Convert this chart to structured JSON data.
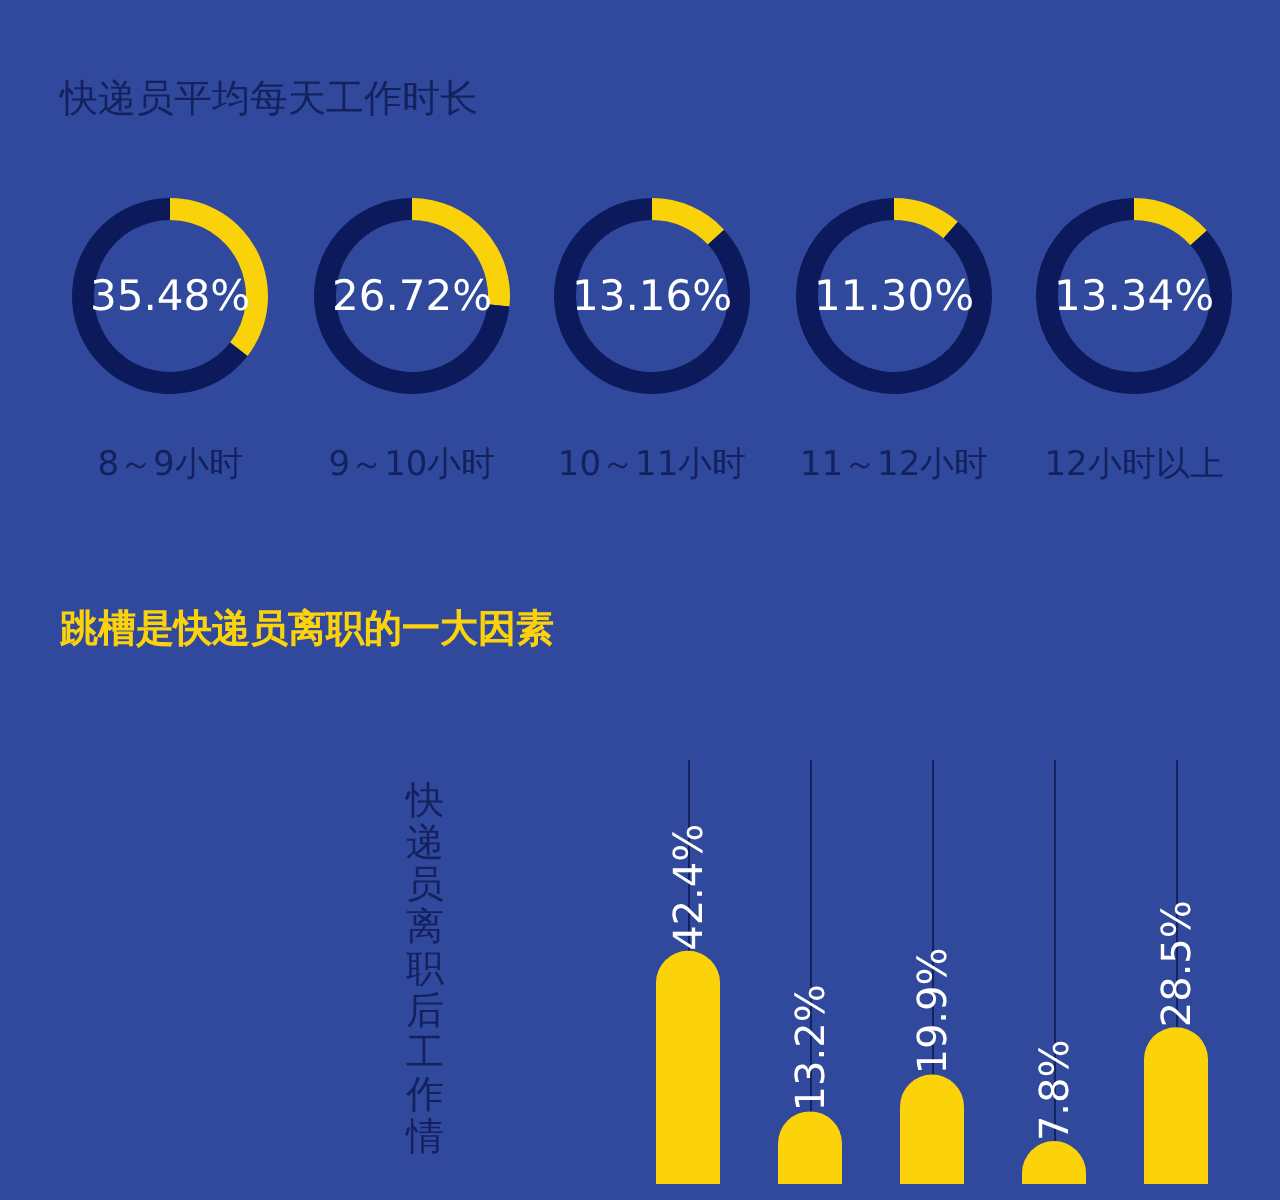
{
  "chart_data": [
    {
      "type": "other",
      "title": "快递员平均每天工作时长"
    },
    {
      "type": "donut",
      "title": "8～9小时",
      "categories": [
        null,
        null
      ],
      "values": [
        35.48,
        64.52
      ],
      "value_labels": [
        "35.48%",
        null
      ],
      "colors": [
        "#f9d20a",
        "#0c1a5c"
      ]
    },
    {
      "type": "donut",
      "title": "9～10小时",
      "categories": [
        null,
        null
      ],
      "values": [
        26.72,
        73.28
      ],
      "value_labels": [
        "26.72%",
        null
      ],
      "colors": [
        "#f9d20a",
        "#0c1a5c"
      ]
    },
    {
      "type": "donut",
      "title": "10～11小时",
      "categories": [
        null,
        null
      ],
      "values": [
        13.16,
        86.84
      ],
      "value_labels": [
        "13.16%",
        null
      ],
      "colors": [
        "#f9d20a",
        "#0c1a5c"
      ]
    },
    {
      "type": "donut",
      "title": "11～12小时",
      "categories": [
        null,
        null
      ],
      "values": [
        11.3,
        88.7
      ],
      "value_labels": [
        "11.30%",
        null
      ],
      "colors": [
        "#f9d20a",
        "#0c1a5c"
      ]
    },
    {
      "type": "donut",
      "title": "12小时以上",
      "categories": [
        null,
        null
      ],
      "values": [
        13.34,
        86.66
      ],
      "value_labels": [
        "13.34%",
        null
      ],
      "colors": [
        "#f9d20a",
        "#0c1a5c"
      ]
    },
    {
      "type": "bar",
      "title": "跳槽是快递员离职的一大因素",
      "ylabel": "快递员离职后工作情",
      "categories": [
        null,
        null,
        null,
        null,
        null
      ],
      "values": [
        42.4,
        13.2,
        19.9,
        7.8,
        28.5
      ],
      "value_labels": [
        "42.4%",
        "13.2%",
        "19.9%",
        "7.8%",
        "28.5%"
      ],
      "color": "#fcd20b",
      "grid": "x"
    }
  ]
}
